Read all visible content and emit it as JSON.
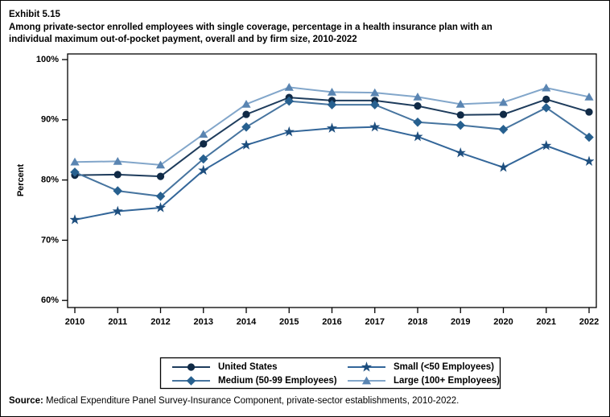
{
  "header": {
    "exhibit": "Exhibit 5.15",
    "title_lines": [
      "Among private-sector enrolled employees with single coverage, percentage in a health insurance plan with an",
      "individual maximum out-of-pocket payment, overall and by firm size, 2010-2022"
    ]
  },
  "chart_data": {
    "type": "line",
    "title": "Among private-sector enrolled employees with single coverage, percentage in a health insurance plan with an individual maximum out-of-pocket payment, overall and by firm size, 2010-2022",
    "xlabel": "",
    "ylabel": "Percent",
    "ylim": [
      60,
      100
    ],
    "grid": false,
    "legend_position": "bottom",
    "x": [
      "2010",
      "2011",
      "2012",
      "2013",
      "2014",
      "2015",
      "2016",
      "2017",
      "2018",
      "2019",
      "2020",
      "2021",
      "2022"
    ],
    "yticks": [
      {
        "value": 100,
        "label": "100%"
      },
      {
        "value": 90,
        "label": "90%"
      },
      {
        "value": 80,
        "label": "80%"
      },
      {
        "value": 70,
        "label": "70%"
      },
      {
        "value": 60,
        "label": "60%"
      }
    ],
    "series": [
      {
        "name": "United States",
        "marker": "circle",
        "line_color": "#1e3c5c",
        "marker_color": "#102a46",
        "values": [
          80.8,
          80.9,
          80.6,
          86.0,
          90.9,
          93.7,
          93.2,
          93.2,
          92.3,
          90.8,
          90.9,
          93.4,
          91.3
        ]
      },
      {
        "name": "Medium (50-99 Employees)",
        "marker": "diamond",
        "line_color": "#46749f",
        "marker_color": "#27608f",
        "values": [
          81.3,
          78.2,
          77.3,
          83.5,
          88.8,
          93.1,
          92.5,
          92.5,
          89.6,
          89.1,
          88.4,
          92.0,
          87.1
        ]
      },
      {
        "name": "Small (<50 Employees)",
        "marker": "star",
        "line_color": "#336699",
        "marker_color": "#1d4e7e",
        "values": [
          73.4,
          74.8,
          75.4,
          81.6,
          85.8,
          88.0,
          88.6,
          88.8,
          87.2,
          84.5,
          82.1,
          85.7,
          83.1
        ]
      },
      {
        "name": "Large (100+ Employees)",
        "marker": "triangle",
        "line_color": "#82a6ca",
        "marker_color": "#5a85b2",
        "values": [
          83.0,
          83.1,
          82.5,
          87.6,
          92.6,
          95.4,
          94.6,
          94.5,
          93.8,
          92.6,
          92.9,
          95.3,
          93.8
        ]
      }
    ]
  },
  "source": {
    "label": "Source:",
    "text": " Medical Expenditure Panel Survey-Insurance Component, private-sector establishments, 2010-2022."
  }
}
